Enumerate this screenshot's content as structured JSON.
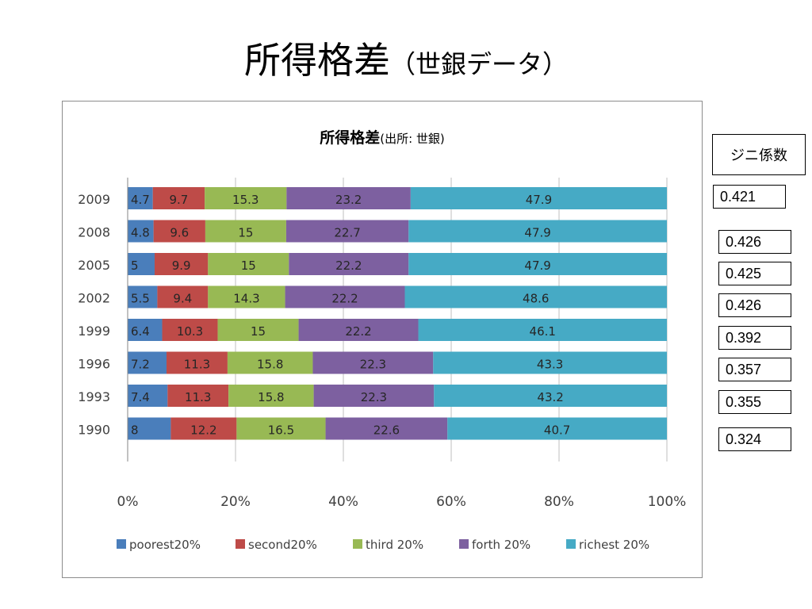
{
  "slide": {
    "title_main": "所得格差",
    "title_sub": "（世銀データ）"
  },
  "chart_data": {
    "type": "bar",
    "orientation": "horizontal",
    "stacked": "percent",
    "title": "所得格差",
    "title_suffix": "(出所: 世銀)",
    "categories": [
      "2009",
      "2008",
      "2005",
      "2002",
      "1999",
      "1996",
      "1993",
      "1990"
    ],
    "series": [
      {
        "name": "poorest20%",
        "color": "#4a7ebb",
        "values": [
          4.7,
          4.8,
          5,
          5.5,
          6.4,
          7.2,
          7.4,
          8
        ]
      },
      {
        "name": "second20%",
        "color": "#be4b48",
        "values": [
          9.7,
          9.6,
          9.9,
          9.4,
          10.3,
          11.3,
          11.3,
          12.2
        ]
      },
      {
        "name": "third 20%",
        "color": "#98b954",
        "values": [
          15.3,
          15,
          15,
          14.3,
          15,
          15.8,
          15.8,
          16.5
        ]
      },
      {
        "name": "forth 20%",
        "color": "#7d60a0",
        "values": [
          23.2,
          22.7,
          22.2,
          22.2,
          22.2,
          22.3,
          22.3,
          22.6
        ]
      },
      {
        "name": "richest 20%",
        "color": "#46aac5",
        "values": [
          47.9,
          47.9,
          47.9,
          48.6,
          46.1,
          43.3,
          43.2,
          40.7
        ]
      }
    ],
    "x_ticks": [
      "0%",
      "20%",
      "40%",
      "60%",
      "80%",
      "100%"
    ],
    "xlim": [
      0,
      100
    ],
    "grid": true,
    "legend": "bottom"
  },
  "gini": {
    "header": "ジニ係数",
    "values": [
      "0.421",
      "0.426",
      "0.425",
      "0.426",
      "0.392",
      "0.357",
      "0.355",
      "0.324"
    ]
  }
}
